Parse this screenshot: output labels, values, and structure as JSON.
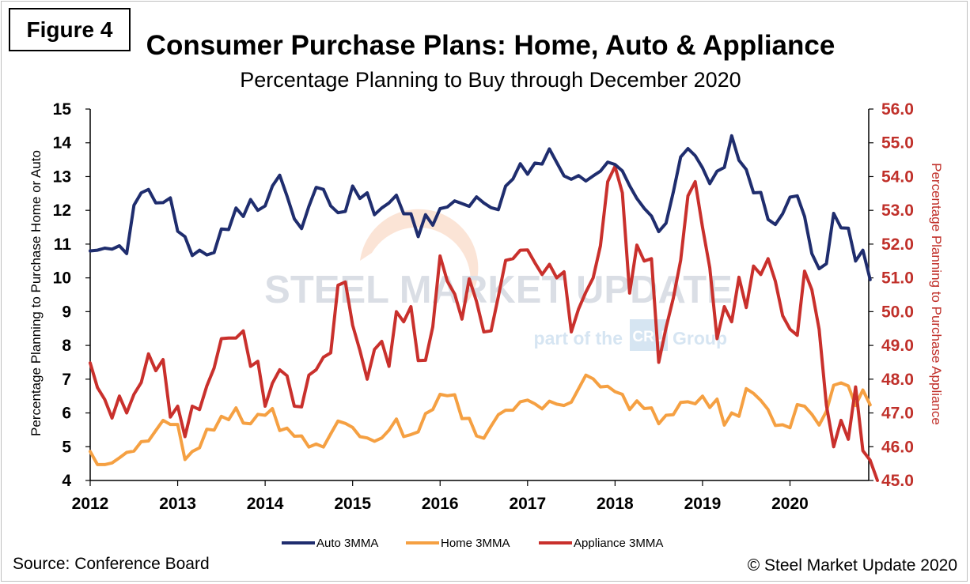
{
  "figure_label": "Figure 4",
  "source": "Source: Conference Board",
  "copyright": "© Steel Market Update 2020",
  "watermark": {
    "brand": "STEEL MARKET UPDATE",
    "tagline_left": "part of the",
    "logo": "CRU",
    "tagline_right": "Group"
  },
  "colors": {
    "auto": "#1f2d6e",
    "home": "#f5a042",
    "appliance": "#c9302c",
    "right_axis": "#c0302a"
  },
  "chart_data": {
    "type": "line",
    "title": "Consumer Purchase Plans: Home, Auto & Appliance",
    "subtitle": "Percentage Planning to Buy through December 2020",
    "ylabel_left": "Percentage Planning to Purchase Home or Auto",
    "ylabel_right": "Percentage Planning to Purchase Appliance",
    "ylim_left": [
      4,
      15
    ],
    "ylim_right": [
      45.0,
      56.0
    ],
    "xlim": [
      2012,
      2020.9
    ],
    "x_ticks": [
      "2012",
      "2013",
      "2014",
      "2015",
      "2016",
      "2017",
      "2018",
      "2019",
      "2020"
    ],
    "y_ticks_left": [
      "4",
      "5",
      "6",
      "7",
      "8",
      "9",
      "10",
      "11",
      "12",
      "13",
      "14",
      "15"
    ],
    "y_ticks_right": [
      "45.0",
      "46.0",
      "47.0",
      "48.0",
      "49.0",
      "50.0",
      "51.0",
      "52.0",
      "53.0",
      "54.0",
      "55.0",
      "56.0"
    ],
    "legend_position": "bottom",
    "grid": false,
    "series": [
      {
        "name": "Auto 3MMA",
        "axis": "left",
        "color": "#1f2d6e",
        "x_start": 2012,
        "x_step": 0.08333,
        "values": [
          10.8,
          10.82,
          10.88,
          10.85,
          10.95,
          10.72,
          12.15,
          12.52,
          12.62,
          12.22,
          12.23,
          12.37,
          11.38,
          11.22,
          10.66,
          10.82,
          10.68,
          10.75,
          11.45,
          11.43,
          12.07,
          11.82,
          12.32,
          12.0,
          12.13,
          12.72,
          13.04,
          12.42,
          11.75,
          11.46,
          12.12,
          12.68,
          12.62,
          12.13,
          11.93,
          11.97,
          12.72,
          12.35,
          12.52,
          11.87,
          12.07,
          12.22,
          12.45,
          11.9,
          11.9,
          11.22,
          11.87,
          11.56,
          12.05,
          12.1,
          12.28,
          12.2,
          12.12,
          12.4,
          12.22,
          12.08,
          12.02,
          12.72,
          12.93,
          13.38,
          13.07,
          13.4,
          13.37,
          13.82,
          13.42,
          13.02,
          12.92,
          13.03,
          12.87,
          13.02,
          13.16,
          13.43,
          13.36,
          13.17,
          12.73,
          12.35,
          12.06,
          11.83,
          11.37,
          11.62,
          12.54,
          13.58,
          13.83,
          13.62,
          13.26,
          12.79,
          13.16,
          13.27,
          14.21,
          13.48,
          13.21,
          12.52,
          12.53,
          11.73,
          11.58,
          11.9,
          12.39,
          12.43,
          11.82,
          10.72,
          10.27,
          10.42,
          11.91,
          11.48,
          11.47,
          10.5,
          10.82,
          9.95
        ]
      },
      {
        "name": "Home 3MMA",
        "axis": "left",
        "color": "#f5a042",
        "x_start": 2012,
        "x_step": 0.08333,
        "values": [
          4.86,
          4.47,
          4.47,
          4.52,
          4.67,
          4.83,
          4.87,
          5.15,
          5.17,
          5.48,
          5.78,
          5.66,
          5.66,
          4.62,
          4.86,
          4.97,
          5.52,
          5.49,
          5.9,
          5.8,
          6.15,
          5.7,
          5.68,
          5.96,
          5.93,
          6.13,
          5.48,
          5.55,
          5.31,
          5.32,
          4.99,
          5.08,
          4.99,
          5.38,
          5.76,
          5.69,
          5.57,
          5.3,
          5.26,
          5.16,
          5.26,
          5.49,
          5.82,
          5.3,
          5.36,
          5.44,
          5.98,
          6.1,
          6.55,
          6.51,
          6.54,
          5.83,
          5.84,
          5.32,
          5.25,
          5.61,
          5.95,
          6.08,
          6.08,
          6.33,
          6.38,
          6.27,
          6.12,
          6.35,
          6.26,
          6.22,
          6.32,
          6.72,
          7.12,
          7.01,
          6.77,
          6.79,
          6.63,
          6.55,
          6.1,
          6.36,
          6.13,
          6.15,
          5.68,
          5.93,
          5.95,
          6.31,
          6.33,
          6.27,
          6.5,
          6.16,
          6.41,
          5.64,
          6.0,
          5.9,
          6.72,
          6.58,
          6.37,
          6.1,
          5.63,
          5.65,
          5.56,
          6.25,
          6.2,
          5.96,
          5.64,
          6.05,
          6.82,
          6.89,
          6.8,
          6.22,
          6.68,
          6.24
        ]
      },
      {
        "name": "Appliance 3MMA",
        "axis": "right",
        "color": "#c9302c",
        "x_start": 2012,
        "x_step": 0.08333,
        "values": [
          48.48,
          47.75,
          47.4,
          46.85,
          47.5,
          47.0,
          47.55,
          47.9,
          48.75,
          48.25,
          48.58,
          46.88,
          47.2,
          46.3,
          47.2,
          47.1,
          47.8,
          48.33,
          49.2,
          49.22,
          49.22,
          49.43,
          48.38,
          48.53,
          47.2,
          47.88,
          48.28,
          48.1,
          47.2,
          47.18,
          48.12,
          48.28,
          48.65,
          48.78,
          50.78,
          50.88,
          49.6,
          48.85,
          48.0,
          48.88,
          49.12,
          48.38,
          50.0,
          49.7,
          50.15,
          48.55,
          48.56,
          49.55,
          51.65,
          50.9,
          50.52,
          49.78,
          50.97,
          50.3,
          49.4,
          49.43,
          50.45,
          51.52,
          51.57,
          51.82,
          51.83,
          51.45,
          51.1,
          51.4,
          51.0,
          51.18,
          49.4,
          50.08,
          50.58,
          51.0,
          51.95,
          53.85,
          54.3,
          53.52,
          50.55,
          51.97,
          51.5,
          51.57,
          48.5,
          49.52,
          50.4,
          51.52,
          53.43,
          53.85,
          52.5,
          51.3,
          49.2,
          50.15,
          49.7,
          51.02,
          50.12,
          51.35,
          51.1,
          51.57,
          50.9,
          49.88,
          49.48,
          49.3,
          51.2,
          50.65,
          49.48,
          47.23,
          46.0,
          46.78,
          46.22,
          47.77,
          45.88,
          45.6,
          45.0
        ]
      }
    ]
  }
}
